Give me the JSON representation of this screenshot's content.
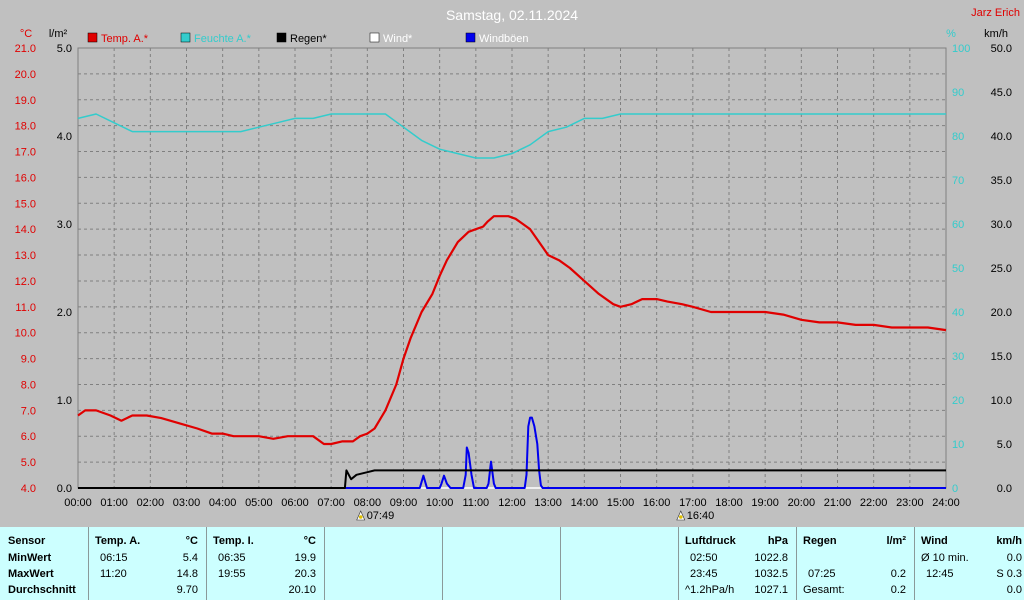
{
  "title": "Samstag, 02.11.2024",
  "author": "Jarz Erich",
  "axes": {
    "temp_unit": "°C",
    "rain_unit": "l/m²",
    "humidity_unit": "%",
    "wind_unit": "km/h",
    "temp_ticks": [
      "4.0",
      "5.0",
      "6.0",
      "7.0",
      "8.0",
      "9.0",
      "10.0",
      "11.0",
      "12.0",
      "13.0",
      "14.0",
      "15.0",
      "16.0",
      "17.0",
      "18.0",
      "19.0",
      "20.0",
      "21.0"
    ],
    "rain_ticks": [
      "0.0",
      "1.0",
      "2.0",
      "3.0",
      "4.0",
      "5.0"
    ],
    "humidity_ticks": [
      "0",
      "10",
      "20",
      "30",
      "40",
      "50",
      "60",
      "70",
      "80",
      "90",
      "100"
    ],
    "wind_ticks": [
      "0.0",
      "5.0",
      "10.0",
      "15.0",
      "20.0",
      "25.0",
      "30.0",
      "35.0",
      "40.0",
      "45.0",
      "50.0"
    ],
    "time_ticks": [
      "00:00",
      "01:00",
      "02:00",
      "03:00",
      "04:00",
      "05:00",
      "06:00",
      "07:00",
      "08:00",
      "09:00",
      "10:00",
      "11:00",
      "12:00",
      "13:00",
      "14:00",
      "15:00",
      "16:00",
      "17:00",
      "18:00",
      "19:00",
      "20:00",
      "21:00",
      "22:00",
      "23:00",
      "24:00"
    ]
  },
  "sun_markers": {
    "sunrise": "07:49",
    "sunset": "16:40"
  },
  "colors": {
    "temperature": "#e00000",
    "humidity": "#33cccc",
    "rain": "#000000",
    "wind": "#ffffff",
    "gusts": "#0000ee",
    "grid": "#808080",
    "background": "#c0c0c0",
    "table_bg": "#ccffff"
  },
  "chart_data": {
    "type": "line",
    "title": "Samstag, 02.11.2024",
    "x_range": [
      "00:00",
      "24:00"
    ],
    "temp_range": [
      4.0,
      21.0
    ],
    "rain_range": [
      0.0,
      5.0
    ],
    "humidity_range": [
      0,
      100
    ],
    "wind_range": [
      0.0,
      50.0
    ],
    "grid": true,
    "legend_position": "top-left",
    "series": [
      {
        "name": "Temp. A.*",
        "axis": "temp",
        "x": [
          0,
          0.2,
          0.5,
          0.9,
          1.2,
          1.5,
          1.9,
          2.3,
          2.8,
          3.3,
          3.7,
          4.0,
          4.3,
          4.7,
          5.0,
          5.4,
          5.8,
          6.2,
          6.5,
          6.8,
          7.0,
          7.3,
          7.6,
          7.8,
          8.0,
          8.2,
          8.5,
          8.8,
          9.0,
          9.2,
          9.5,
          9.8,
          10.0,
          10.2,
          10.5,
          10.8,
          11.0,
          11.2,
          11.33,
          11.5,
          11.7,
          11.9,
          12.1,
          12.3,
          12.5,
          12.7,
          13.0,
          13.3,
          13.6,
          14.0,
          14.4,
          14.8,
          15.0,
          15.3,
          15.6,
          16.0,
          16.3,
          16.7,
          17.0,
          17.5,
          18.0,
          18.5,
          19.0,
          19.5,
          20.0,
          20.5,
          21.0,
          21.5,
          22.0,
          22.5,
          23.0,
          23.5,
          24.0
        ],
        "values": [
          6.8,
          7.0,
          7.0,
          6.8,
          6.6,
          6.8,
          6.8,
          6.7,
          6.5,
          6.3,
          6.1,
          6.1,
          6.0,
          6.0,
          6.0,
          5.9,
          6.0,
          6.0,
          6.0,
          5.7,
          5.7,
          5.8,
          5.8,
          6.0,
          6.1,
          6.3,
          7.0,
          8.0,
          9.0,
          9.8,
          10.8,
          11.5,
          12.2,
          12.8,
          13.5,
          13.9,
          14.0,
          14.1,
          14.3,
          14.5,
          14.5,
          14.5,
          14.4,
          14.2,
          14.0,
          13.6,
          13.0,
          12.8,
          12.5,
          12.0,
          11.5,
          11.1,
          11.0,
          11.1,
          11.3,
          11.3,
          11.2,
          11.1,
          11.0,
          10.8,
          10.8,
          10.8,
          10.8,
          10.7,
          10.5,
          10.4,
          10.4,
          10.3,
          10.3,
          10.2,
          10.2,
          10.2,
          10.1
        ]
      },
      {
        "name": "Feuchte A.*",
        "axis": "humidity",
        "x": [
          0,
          0.5,
          1,
          1.5,
          2,
          2.5,
          3,
          3.5,
          4,
          4.5,
          5,
          5.5,
          6,
          6.5,
          7,
          7.5,
          8,
          8.5,
          9,
          9.5,
          10,
          10.5,
          11,
          11.5,
          12,
          12.5,
          13,
          13.5,
          14,
          14.5,
          15,
          15.5,
          16,
          16.5,
          17,
          17.5,
          18,
          19,
          20,
          21,
          22,
          23,
          24
        ],
        "values": [
          84,
          85,
          83,
          81,
          81,
          81,
          81,
          81,
          81,
          81,
          82,
          83,
          84,
          84,
          85,
          85,
          85,
          85,
          82,
          79,
          77,
          76,
          75,
          75,
          76,
          78,
          81,
          82,
          84,
          84,
          85,
          85,
          85,
          85,
          85,
          85,
          85,
          85,
          85,
          85,
          85,
          85,
          85
        ]
      },
      {
        "name": "Regen*",
        "axis": "rain",
        "x": [
          0,
          7.38,
          7.42,
          7.55,
          7.7,
          8.0,
          8.2,
          8.5,
          9.0,
          12.0,
          24.0
        ],
        "values": [
          0.0,
          0.0,
          0.2,
          0.1,
          0.15,
          0.18,
          0.2,
          0.2,
          0.2,
          0.2,
          0.2
        ]
      },
      {
        "name": "Wind*",
        "axis": "wind",
        "x": [
          0,
          24
        ],
        "values": [
          0.0,
          0.0
        ]
      },
      {
        "name": "Windböen",
        "axis": "wind",
        "x": [
          0,
          9.45,
          9.55,
          9.65,
          9.75,
          10.0,
          10.05,
          10.12,
          10.2,
          10.3,
          10.65,
          10.72,
          10.75,
          10.8,
          10.88,
          10.95,
          11.3,
          11.35,
          11.42,
          11.5,
          11.55,
          12.35,
          12.4,
          12.45,
          12.5,
          12.55,
          12.62,
          12.7,
          12.75,
          12.8,
          12.85,
          24
        ],
        "values": [
          0,
          0,
          1.4,
          0,
          0,
          0,
          0.5,
          1.4,
          0.5,
          0,
          0,
          1.5,
          4.6,
          4.0,
          1.5,
          0,
          0,
          0.5,
          3.0,
          0.5,
          0,
          0,
          1.5,
          7.0,
          8.0,
          8.0,
          7.0,
          5.0,
          2.0,
          0.3,
          0,
          0
        ]
      }
    ]
  },
  "legend": [
    {
      "label": "Temp. A.*",
      "color": "#e00000",
      "text_color": "#e00000"
    },
    {
      "label": "Feuchte A.*",
      "color": "#33cccc",
      "text_color": "#33cccc"
    },
    {
      "label": "Regen*",
      "color": "#000000",
      "text_color": "#000000"
    },
    {
      "label": "Wind*",
      "color": "#ffffff",
      "text_color": "#ffffff"
    },
    {
      "label": "Windböen",
      "color": "#0000ee",
      "text_color": "#ffffff"
    }
  ],
  "table": {
    "labels": {
      "sensor": "Sensor",
      "min": "MinWert",
      "max": "MaxWert",
      "avg": "Durchschnitt"
    },
    "temp_a": {
      "name": "Temp. A.",
      "unit": "°C",
      "min_time": "06:15",
      "min_val": "5.4",
      "max_time": "11:20",
      "max_val": "14.8",
      "avg": "9.70"
    },
    "temp_i": {
      "name": "Temp. I.",
      "unit": "°C",
      "min_time": "06:35",
      "min_val": "19.9",
      "max_time": "19:55",
      "max_val": "20.3",
      "avg": "20.10"
    },
    "pressure": {
      "name": "Luftdruck",
      "unit": "hPa",
      "min_time": "02:50",
      "min_val": "1022.8",
      "max_time": "23:45",
      "max_val": "1032.5",
      "avg_label": "^1.2hPa/h",
      "avg": "1027.1"
    },
    "rain": {
      "name": "Regen",
      "unit": "l/m²",
      "max_time": "07:25",
      "max_val": "0.2",
      "avg_label": "Gesamt:",
      "avg": "0.2"
    },
    "wind": {
      "name": "Wind",
      "unit": "km/h",
      "min_label": "Ø 10 min.",
      "min_val": "0.0",
      "max_time": "12:45",
      "max_val": "S 0.3",
      "avg": "0.0"
    }
  }
}
